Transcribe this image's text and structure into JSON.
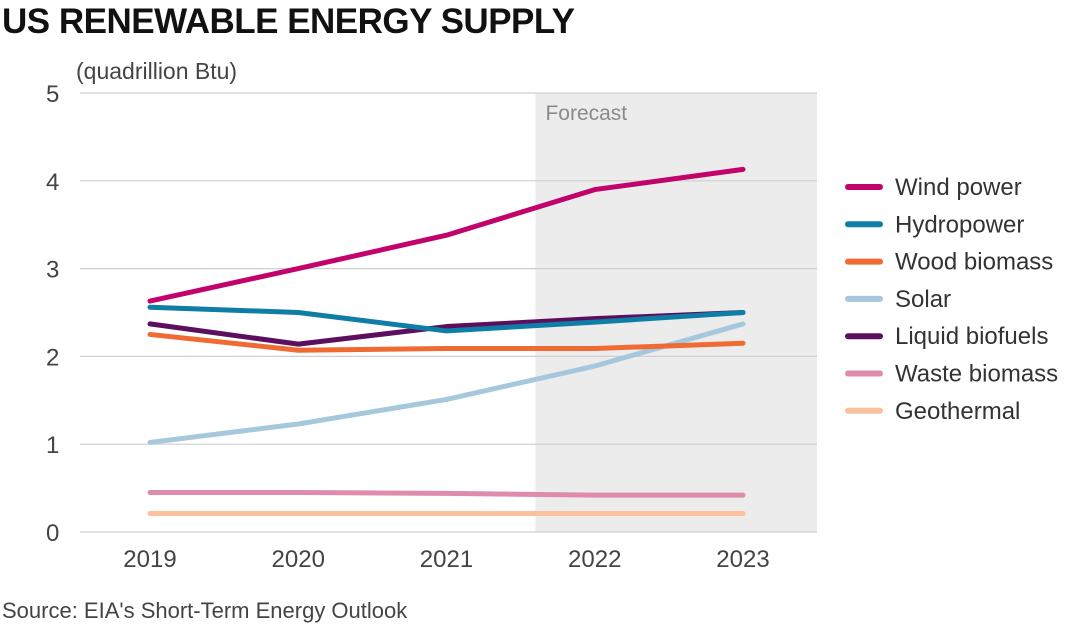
{
  "title": "US RENEWABLE ENERGY SUPPLY",
  "unit_label": "(quadrillion Btu)",
  "source": "Source: EIA's Short-Term Energy Outlook",
  "chart_data": {
    "type": "line",
    "title": "US RENEWABLE ENERGY SUPPLY",
    "ylabel": "(quadrillion Btu)",
    "xlabel": "",
    "x": [
      "2019",
      "2020",
      "2021",
      "2022",
      "2023"
    ],
    "ylim": [
      0,
      5
    ],
    "yticks": [
      "0",
      "1",
      "2",
      "3",
      "4",
      "5"
    ],
    "grid": true,
    "legend_position": "right",
    "forecast": {
      "label": "Forecast",
      "from": 2021.6,
      "to": 2023.5
    },
    "series": [
      {
        "name": "Wind power",
        "color": "#c2036b",
        "values": [
          2.63,
          3.0,
          3.38,
          3.9,
          4.13
        ]
      },
      {
        "name": "Hydropower",
        "color": "#0f7ea6",
        "values": [
          2.56,
          2.5,
          2.29,
          2.39,
          2.5
        ]
      },
      {
        "name": "Wood biomass",
        "color": "#ef6b33",
        "values": [
          2.25,
          2.07,
          2.09,
          2.09,
          2.15
        ]
      },
      {
        "name": "Solar",
        "color": "#a6c8dd",
        "values": [
          1.02,
          1.23,
          1.51,
          1.89,
          2.37
        ]
      },
      {
        "name": "Liquid biofuels",
        "color": "#5c0f5e",
        "values": [
          2.37,
          2.14,
          2.34,
          2.43,
          2.5
        ]
      },
      {
        "name": "Waste biomass",
        "color": "#de8bac",
        "values": [
          0.45,
          0.45,
          0.44,
          0.42,
          0.42
        ]
      },
      {
        "name": "Geothermal",
        "color": "#fbc09c",
        "values": [
          0.21,
          0.21,
          0.21,
          0.21,
          0.21
        ]
      }
    ]
  }
}
